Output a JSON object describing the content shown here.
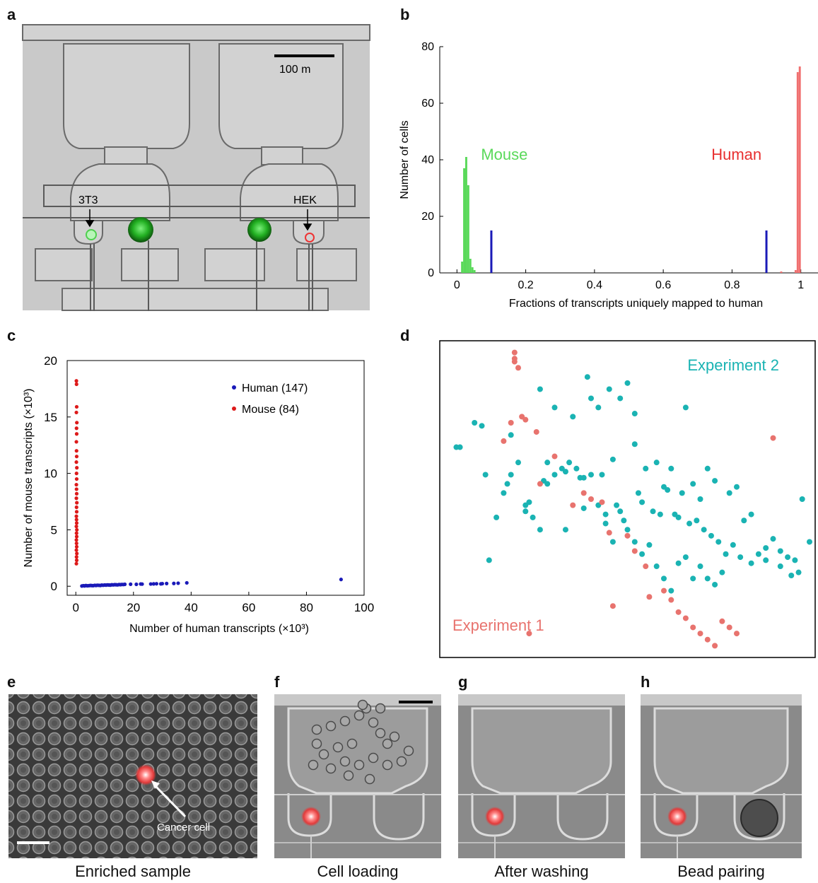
{
  "panels": {
    "a": {
      "letter": "a",
      "scale_bar_label": "100   m",
      "cell_label_left": "3T3",
      "cell_label_right": "HEK"
    },
    "b": {
      "letter": "b"
    },
    "c": {
      "letter": "c"
    },
    "d": {
      "letter": "d"
    },
    "e": {
      "letter": "e",
      "annotation": "Cancer cell",
      "caption": "Enriched sample"
    },
    "f": {
      "letter": "f",
      "caption": "Cell loading"
    },
    "g": {
      "letter": "g",
      "caption": "After washing"
    },
    "h": {
      "letter": "h",
      "caption": "Bead pairing"
    }
  },
  "colors": {
    "mouse_hist": "#5ad95a",
    "human_hist": "#f07070",
    "threshold": "#1a1ab8",
    "human_scatter": "#1a1ab8",
    "mouse_scatter": "#dd1a1a",
    "exp1": "#e8736e",
    "exp2": "#1ab3b3"
  },
  "chart_data": [
    {
      "id": "b",
      "type": "bar",
      "xlabel": "Fractions of transcripts uniquely mapped to human",
      "ylabel": "Number of cells",
      "xlim": [
        -0.05,
        1.05
      ],
      "ylim": [
        0,
        80
      ],
      "xticks": [
        0,
        0.2,
        0.4,
        0.6,
        0.8,
        1
      ],
      "xtick_labels": [
        "0",
        "0.2",
        "0.4",
        "0.6",
        "0.8",
        "1"
      ],
      "yticks": [
        0,
        20,
        40,
        60,
        80
      ],
      "ytick_labels": [
        "0",
        "20",
        "40",
        "60",
        "80"
      ],
      "bin_width": 0.006,
      "series": [
        {
          "name": "Mouse",
          "color": "#5ad95a",
          "bins": [
            0.012,
            0.018,
            0.024,
            0.03,
            0.036,
            0.042,
            0.048
          ],
          "counts": [
            4,
            37,
            41,
            31,
            5,
            2,
            1
          ]
        },
        {
          "name": "Human",
          "color": "#f07070",
          "bins": [
            0.94,
            0.982,
            0.988,
            0.994
          ],
          "counts": [
            0.5,
            1,
            71,
            73
          ]
        }
      ],
      "thresholds": [
        0.1,
        0.9
      ],
      "threshold_height": 15
    },
    {
      "id": "c",
      "type": "scatter",
      "xlabel": "Number of human transcripts (×10³)",
      "ylabel": "Number of mouse transcripts (×10³)",
      "xlim": [
        -3,
        100
      ],
      "ylim": [
        -0.8,
        20
      ],
      "xticks": [
        0,
        20,
        40,
        60,
        80,
        100
      ],
      "xtick_labels": [
        "0",
        "20",
        "40",
        "60",
        "80",
        "100"
      ],
      "yticks": [
        0,
        5,
        10,
        15,
        20
      ],
      "ytick_labels": [
        "0",
        "5",
        "10",
        "15",
        "20"
      ],
      "legend_position": "top-right",
      "series": [
        {
          "name": "Human (147)",
          "color": "#1a1ab8",
          "x": [
            2.1,
            2.6,
            3.0,
            3.5,
            4.0,
            4.5,
            5.0,
            5.5,
            6.0,
            6.5,
            7.0,
            7.5,
            8.0,
            8.5,
            9.0,
            9.5,
            10.0,
            10.5,
            11.0,
            11.5,
            12.0,
            12.5,
            13.0,
            13.5,
            14.0,
            14.5,
            15.0,
            15.5,
            16.0,
            16.5,
            17.0,
            19.0,
            21.0,
            22.5,
            23.0,
            26.0,
            27.0,
            28.0,
            29.5,
            30.0,
            31.5,
            34.0,
            35.5,
            38.5,
            92.0
          ],
          "y": [
            0.02,
            0.05,
            0.03,
            0.06,
            0.04,
            0.05,
            0.07,
            0.06,
            0.05,
            0.08,
            0.07,
            0.09,
            0.08,
            0.07,
            0.1,
            0.09,
            0.11,
            0.1,
            0.12,
            0.11,
            0.1,
            0.13,
            0.12,
            0.14,
            0.13,
            0.12,
            0.15,
            0.14,
            0.16,
            0.15,
            0.17,
            0.18,
            0.17,
            0.2,
            0.19,
            0.2,
            0.21,
            0.22,
            0.21,
            0.23,
            0.24,
            0.25,
            0.27,
            0.3,
            0.6
          ]
        },
        {
          "name": "Mouse (84)",
          "color": "#dd1a1a",
          "x": [
            0.2,
            0.3,
            0.25,
            0.35,
            0.2,
            0.3,
            0.25,
            0.2,
            0.3,
            0.25,
            0.35,
            0.2,
            0.3,
            0.25,
            0.2,
            0.3,
            0.25,
            0.35,
            0.2,
            0.3,
            0.25,
            0.2,
            0.3,
            0.25,
            0.35,
            0.2,
            0.3,
            0.25,
            0.2,
            0.3,
            0.25,
            0.35,
            0.2,
            0.3,
            0.25,
            0.2
          ],
          "y": [
            2.0,
            2.3,
            2.6,
            2.9,
            3.2,
            3.5,
            3.8,
            4.1,
            4.4,
            4.7,
            5.0,
            5.3,
            5.6,
            5.9,
            6.2,
            6.6,
            7.0,
            7.4,
            7.8,
            8.2,
            8.6,
            9.0,
            9.5,
            10.0,
            10.5,
            11.0,
            11.5,
            12.0,
            12.8,
            13.5,
            14.0,
            14.5,
            15.4,
            15.9,
            17.9,
            18.2
          ]
        }
      ]
    },
    {
      "id": "d",
      "type": "scatter",
      "xlim": [
        0,
        100
      ],
      "ylim": [
        0,
        100
      ],
      "labels": [
        "Experiment 2",
        "Experiment 1"
      ],
      "series": [
        {
          "name": "Experiment 2",
          "color": "#1ab3b3",
          "x": [
            3,
            4,
            8,
            10,
            16,
            18,
            20,
            22,
            24,
            26,
            28,
            30,
            32,
            34,
            36,
            38,
            40,
            42,
            44,
            46,
            48,
            50,
            52,
            54,
            56,
            58,
            60,
            62,
            64,
            66,
            68,
            70,
            72,
            74,
            76,
            78,
            80,
            82,
            84,
            86,
            88,
            90,
            92,
            94,
            96,
            98,
            100,
            12,
            14,
            22,
            30,
            35,
            40,
            42,
            45,
            48,
            50,
            52,
            55,
            58,
            60,
            62,
            65,
            68,
            70,
            72,
            74,
            28,
            33,
            37,
            43,
            47,
            53,
            57,
            63,
            67,
            17,
            23,
            27,
            33,
            38,
            44,
            49,
            54,
            59,
            61,
            64,
            69,
            71,
            73,
            75,
            77,
            79,
            81,
            84,
            88,
            92,
            95,
            97,
            18,
            26,
            39,
            46,
            52,
            66,
            11
          ],
          "y": [
            67,
            67,
            75,
            74,
            52,
            58,
            62,
            48,
            44,
            40,
            55,
            58,
            60,
            62,
            60,
            57,
            58,
            48,
            42,
            36,
            46,
            40,
            36,
            32,
            35,
            28,
            24,
            20,
            29,
            31,
            24,
            28,
            24,
            22,
            26,
            52,
            54,
            43,
            45,
            32,
            30,
            37,
            33,
            31,
            30,
            50,
            36,
            30,
            44,
            46,
            80,
            77,
            83,
            80,
            86,
            83,
            88,
            78,
            60,
            62,
            54,
            60,
            52,
            55,
            50,
            60,
            56,
            62,
            59,
            57,
            58,
            48,
            52,
            46,
            45,
            42,
            55,
            49,
            56,
            40,
            47,
            45,
            43,
            49,
            45,
            53,
            44,
            43,
            40,
            38,
            36,
            32,
            35,
            31,
            29,
            34,
            28,
            25,
            26,
            71,
            86,
            90,
            63,
            68,
            80,
            58
          ]
        },
        {
          "name": "Experiment 1",
          "color": "#e8736e",
          "x": [
            19,
            19,
            19,
            20,
            18,
            16,
            21,
            22,
            25,
            30,
            38,
            40,
            43,
            45,
            50,
            52,
            55,
            60,
            62,
            64,
            66,
            68,
            70,
            72,
            74,
            76,
            78,
            80,
            90,
            35,
            26,
            23,
            46,
            56
          ],
          "y": [
            98,
            96,
            95,
            93,
            75,
            69,
            77,
            76,
            72,
            64,
            52,
            50,
            49,
            39,
            38,
            33,
            28,
            20,
            17,
            13,
            11,
            8,
            6,
            4,
            2,
            10,
            8,
            6,
            70,
            48,
            55,
            6,
            15,
            18
          ]
        }
      ]
    }
  ]
}
